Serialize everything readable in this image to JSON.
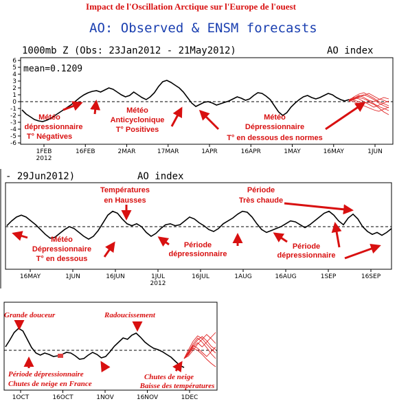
{
  "header": {
    "main_title": "Impact de l'Oscillation Arctique sur l'Europe de l'ouest",
    "title_color": "#d81010"
  },
  "chart_data": [
    {
      "type": "line",
      "title": "AO: Observed & ENSM forecasts",
      "subtitle": "1000mb Z (Obs: 23Jan2012 - 21May2012)",
      "index_label": "AO index",
      "mean_label": "mean=0.1209",
      "ylim": [
        -6,
        6
      ],
      "yticks": [
        "6",
        "5",
        "4",
        "3",
        "2",
        "1",
        "0",
        "-1",
        "-2",
        "-3",
        "-4",
        "-5",
        "-6"
      ],
      "xticks": [
        "1FEB\n2012",
        "16FEB",
        "2MAR",
        "17MAR",
        "1APR",
        "16APR",
        "1MAY",
        "16MAY",
        "1JUN"
      ],
      "series": [
        {
          "values": [
            -1.2,
            -1.8,
            -2.2,
            -2.6,
            -2.8,
            -2.9,
            -2.7,
            -2.4,
            -2.0,
            -1.6,
            -1.2,
            -0.8,
            -0.4,
            0.1,
            0.6,
            1.0,
            1.3,
            1.5,
            1.6,
            1.4,
            1.7,
            2.0,
            1.8,
            1.4,
            1.0,
            0.7,
            0.9,
            1.4,
            1.0,
            0.6,
            0.3,
            0.7,
            1.3,
            2.2,
            2.9,
            3.1,
            2.8,
            2.4,
            2.0,
            1.4,
            0.6,
            -0.2,
            -0.7,
            -0.4,
            -0.1,
            0.0,
            -0.2,
            -0.5,
            -0.3,
            -0.1,
            0.1,
            0.4,
            0.7,
            0.5,
            0.2,
            0.4,
            0.9,
            1.3,
            1.2,
            0.8,
            0.3,
            -0.6,
            -1.5,
            -2.0,
            -1.6,
            -0.8,
            -0.2,
            0.3,
            0.7,
            0.9,
            0.6,
            0.4,
            0.6,
            0.9,
            1.2,
            1.0,
            0.6,
            0.3,
            0.1,
            0.3
          ]
        }
      ],
      "forecast": {
        "color": "#e02020",
        "members": [
          [
            0.2,
            0.5,
            0.8,
            1.0,
            0.7,
            0.3,
            -0.2,
            -0.6,
            -0.9
          ],
          [
            0.1,
            0.3,
            0.6,
            0.4,
            0.1,
            -0.3,
            -0.7,
            -1.0,
            -1.3
          ],
          [
            0.3,
            0.6,
            0.4,
            0.0,
            -0.4,
            -0.8,
            -0.5,
            -0.2,
            0.1
          ],
          [
            0.0,
            0.4,
            0.7,
            0.9,
            1.2,
            0.8,
            0.4,
            0.2,
            -0.1
          ],
          [
            0.2,
            0.0,
            -0.3,
            -0.6,
            -0.9,
            -1.2,
            -1.4,
            -1.1,
            -0.8
          ],
          [
            0.1,
            0.5,
            0.9,
            0.6,
            0.2,
            0.0,
            0.3,
            0.6,
            0.4
          ],
          [
            0.3,
            0.2,
            0.0,
            -0.2,
            -0.1,
            -0.4,
            -0.9,
            -1.5,
            -1.9
          ],
          [
            0.2,
            0.7,
            1.1,
            1.3,
            0.9,
            0.5,
            0.0,
            -0.3,
            -0.6
          ]
        ]
      },
      "annotations": [
        {
          "text": "Météo\ndépressionnaire\nT° Négatives"
        },
        {
          "text": "Météo\nAnticyclonique\nT° Positives"
        },
        {
          "text": "Météo\nDépressionnaire\nT° en dessous des normes"
        }
      ]
    },
    {
      "type": "line",
      "subtitle": "- 29Jun2012)",
      "index_label": "AO index",
      "xticks": [
        "16MAY",
        "1JUN",
        "16JUN",
        "1JUL\n2012",
        "16JUL",
        "1AUG",
        "16AUG",
        "1SEP",
        "16SEP"
      ],
      "series": [
        {
          "values": [
            0.1,
            0.6,
            1.0,
            1.2,
            1.0,
            0.6,
            0.2,
            -0.3,
            -0.8,
            -1.2,
            -1.1,
            -0.7,
            -0.3,
            0.0,
            -0.2,
            -0.6,
            -1.0,
            -1.3,
            -1.0,
            -0.4,
            0.4,
            1.2,
            1.6,
            1.4,
            0.8,
            0.3,
            0.1,
            0.3,
            0.0,
            -0.6,
            -1.0,
            -0.7,
            -0.2,
            0.2,
            0.3,
            0.1,
            0.2,
            0.6,
            1.0,
            0.8,
            0.4,
            0.1,
            -0.3,
            -0.5,
            -0.2,
            0.3,
            0.6,
            0.9,
            1.3,
            1.6,
            1.5,
            1.0,
            0.3,
            -0.3,
            -0.6,
            -0.4,
            -0.2,
            0.0,
            0.3,
            0.6,
            0.5,
            0.2,
            -0.1,
            0.2,
            0.6,
            1.0,
            1.4,
            1.6,
            1.2,
            0.6,
            0.2,
            0.9,
            1.3,
            0.8,
            0.0,
            -0.5,
            -0.8,
            -0.6,
            -0.9,
            -0.6,
            -0.2
          ]
        }
      ],
      "annotations": [
        {
          "text": "Températures\nen Hausses"
        },
        {
          "text": "Période\nTrès chaude"
        },
        {
          "text": "Météo\nDépressionnaire\nT° en dessous"
        },
        {
          "text": "Période\ndépressionnaire"
        },
        {
          "text": "Période\ndépressionnaire"
        }
      ]
    },
    {
      "type": "line",
      "xticks": [
        "1OCT",
        "16OCT",
        "1NOV",
        "16NOV",
        "1DEC"
      ],
      "series": [
        {
          "values": [
            0.5,
            1.5,
            2.6,
            3.2,
            2.8,
            1.6,
            0.4,
            -0.4,
            -0.7,
            -0.4,
            -0.6,
            -0.9,
            -0.8,
            -0.6,
            -0.3,
            -0.4,
            -0.8,
            -1.3,
            -1.2,
            -0.7,
            -0.3,
            -0.6,
            -1.1,
            -0.9,
            -0.2,
            0.6,
            1.2,
            1.8,
            1.6,
            2.2,
            2.5,
            1.9,
            1.2,
            0.7,
            0.3,
            0.1,
            -0.2,
            -0.6,
            -1.0,
            -1.6,
            -2.2,
            -2.5
          ]
        }
      ],
      "forecast": {
        "color": "#e02020",
        "members": [
          [
            -1.2,
            -0.4,
            0.6,
            1.5,
            2.0,
            1.4,
            0.6,
            0.1
          ],
          [
            -1.2,
            -0.2,
            0.9,
            1.8,
            1.2,
            0.4,
            -0.5,
            -1.2
          ],
          [
            -1.2,
            -0.8,
            0.0,
            0.9,
            1.6,
            2.3,
            1.7,
            1.0
          ],
          [
            -1.2,
            -0.5,
            0.3,
            0.0,
            -0.6,
            -1.3,
            -1.9,
            -2.4
          ],
          [
            -1.2,
            0.1,
            1.3,
            2.1,
            1.7,
            0.9,
            0.2,
            -0.4
          ],
          [
            -1.2,
            -0.6,
            0.4,
            1.1,
            0.5,
            1.2,
            1.9,
            2.6
          ],
          [
            -1.2,
            -0.3,
            0.7,
            0.3,
            -0.3,
            -0.9,
            -0.2,
            0.5
          ]
        ]
      },
      "annotations": [
        {
          "text": "Grande douceur"
        },
        {
          "text": "Radoucissement"
        },
        {
          "text": "Période dépressionnaire\nChutes de neige en France"
        },
        {
          "text": "Chutes de neige\nBaisse des températures"
        }
      ]
    }
  ]
}
